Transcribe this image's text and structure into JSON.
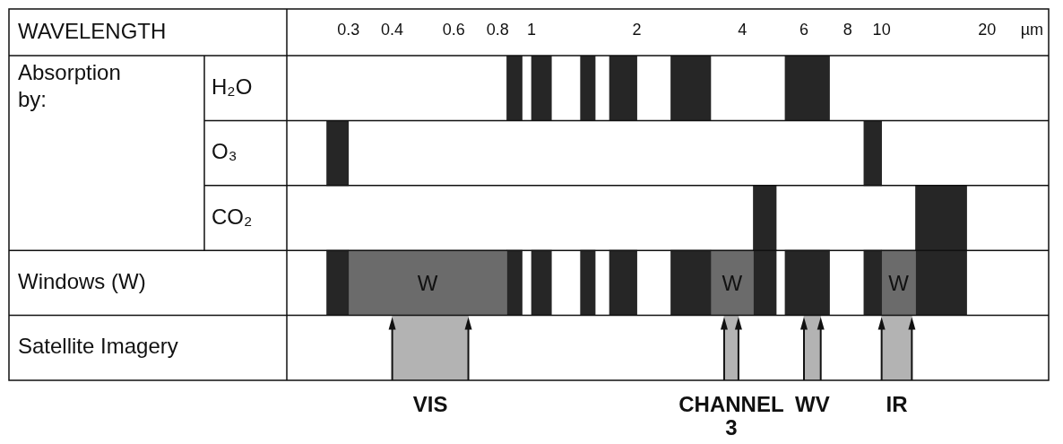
{
  "chart_data": {
    "type": "bar",
    "orientation": "horizontal",
    "title": "WAVELENGTH",
    "ylabel": "Absorption by:",
    "xlabel": "µm",
    "categories": [
      "H₂O",
      "O₃",
      "CO₂",
      "Windows (W)",
      "Satellite Imagery"
    ],
    "log": "x",
    "xlim": [
      0.2,
      30
    ],
    "xticks": [
      0.3,
      0.4,
      0.6,
      0.8,
      1,
      2,
      4,
      6,
      8,
      10,
      20
    ],
    "series": [
      {
        "values": [
          0.09,
          0.04,
          0.7,
          0.04,
          0.26
        ],
        "base": [
          0.85,
          0.26,
          4.3,
          0.26,
          0.4
        ],
        "colors": [
          "#262626",
          "#262626",
          "#262626",
          "#262626",
          "#b3b3b3"
        ]
      },
      {
        "values": [
          0.14,
          1.1,
          5.0,
          0.55,
          0.35
        ],
        "base": [
          1.0,
          8.9,
          12.5,
          0.3,
          3.55
        ],
        "colors": [
          "#262626",
          "#262626",
          "#262626",
          "#6b6b6b",
          "#b3b3b3"
        ],
        "value_labels": [
          null,
          null,
          null,
          "W",
          null
        ]
      },
      {
        "values": [
          0.14,
          null,
          null,
          0.09,
          0.7
        ],
        "base": [
          1.38,
          null,
          null,
          0.85,
          6.0
        ],
        "colors": [
          "#262626",
          "#262626",
          "#262626",
          "#262626",
          "#b3b3b3"
        ]
      },
      {
        "values": [
          0.33,
          null,
          null,
          0.14,
          2.2
        ],
        "base": [
          1.67,
          null,
          null,
          1.0,
          10
        ],
        "colors": [
          "#262626",
          "#262626",
          "#262626",
          "#262626",
          "#b3b3b3"
        ]
      },
      {
        "values": [
          0.75,
          null,
          null,
          0.14,
          null
        ],
        "base": [
          2.5,
          null,
          null,
          1.38,
          null
        ],
        "colors": [
          "#262626",
          "#262626",
          "#262626",
          "#262626",
          "#262626"
        ]
      },
      {
        "values": [
          1.8,
          null,
          null,
          0.33,
          null
        ],
        "base": [
          5.3,
          null,
          null,
          1.67,
          null
        ],
        "colors": [
          "#262626",
          "#262626",
          "#262626",
          "#262626",
          "#262626"
        ]
      },
      {
        "values": [
          null,
          null,
          null,
          0.75,
          null
        ],
        "base": [
          null,
          null,
          null,
          2.5,
          null
        ],
        "colors": [
          "#262626",
          "#262626",
          "#262626",
          "#262626",
          "#262626"
        ]
      },
      {
        "values": [
          null,
          null,
          null,
          1.05,
          null
        ],
        "base": [
          null,
          null,
          null,
          3.25,
          null
        ],
        "colors": [
          "#262626",
          "#262626",
          "#262626",
          "#6b6b6b",
          "#262626"
        ],
        "value_labels": [
          null,
          null,
          null,
          "W",
          null
        ]
      },
      {
        "values": [
          null,
          null,
          null,
          0.7,
          null
        ],
        "base": [
          null,
          null,
          null,
          4.3,
          null
        ],
        "colors": [
          "#262626",
          "#262626",
          "#262626",
          "#262626",
          "#262626"
        ]
      },
      {
        "values": [
          null,
          null,
          null,
          1.8,
          null
        ],
        "base": [
          null,
          null,
          null,
          5.3,
          null
        ],
        "colors": [
          "#262626",
          "#262626",
          "#262626",
          "#262626",
          "#262626"
        ]
      },
      {
        "values": [
          null,
          null,
          null,
          1.1,
          null
        ],
        "base": [
          null,
          null,
          null,
          8.9,
          null
        ],
        "colors": [
          "#262626",
          "#262626",
          "#262626",
          "#262626",
          "#262626"
        ]
      },
      {
        "values": [
          null,
          null,
          null,
          2.5,
          null
        ],
        "base": [
          null,
          null,
          null,
          10,
          null
        ],
        "colors": [
          "#262626",
          "#262626",
          "#262626",
          "#6b6b6b",
          "#262626"
        ],
        "value_labels": [
          null,
          null,
          null,
          "W",
          null
        ]
      },
      {
        "values": [
          null,
          null,
          null,
          5.0,
          null
        ],
        "base": [
          null,
          null,
          null,
          12.5,
          null
        ],
        "colors": [
          "#262626",
          "#262626",
          "#262626",
          "#262626",
          "#262626"
        ]
      }
    ],
    "annotations": [
      {
        "text": "VIS",
        "x": 0.4,
        "y": "Satellite Imagery"
      },
      {
        "text": "CHANNEL 3",
        "x": 3.55,
        "y": "Satellite Imagery"
      },
      {
        "text": "WV",
        "x": 6.0,
        "y": "Satellite Imagery"
      },
      {
        "text": "IR",
        "x": 10,
        "y": "Satellite Imagery"
      }
    ]
  }
}
